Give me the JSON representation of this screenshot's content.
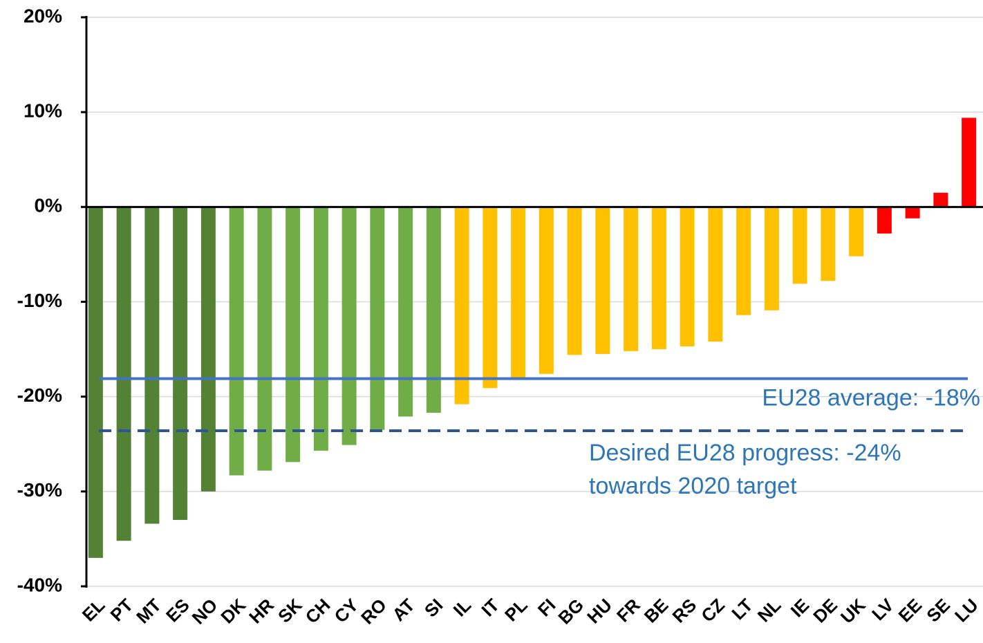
{
  "chart_data": {
    "type": "bar",
    "categories": [
      "EL",
      "PT",
      "MT",
      "ES",
      "NO",
      "DK",
      "HR",
      "SK",
      "CH",
      "CY",
      "RO",
      "AT",
      "SI",
      "IL",
      "IT",
      "PL",
      "FI",
      "BG",
      "HU",
      "FR",
      "BE",
      "RS",
      "CZ",
      "LT",
      "NL",
      "IE",
      "DE",
      "UK",
      "LV",
      "EE",
      "SE",
      "LU"
    ],
    "values": [
      -37.0,
      -35.2,
      -33.4,
      -33.0,
      -30.0,
      -28.3,
      -27.8,
      -26.9,
      -25.7,
      -25.1,
      -23.5,
      -22.1,
      -21.7,
      -20.8,
      -19.1,
      -18.1,
      -17.6,
      -15.6,
      -15.5,
      -15.2,
      -15.0,
      -14.7,
      -14.2,
      -11.4,
      -10.9,
      -8.1,
      -7.8,
      -5.2,
      -2.8,
      -1.2,
      1.5,
      9.4
    ],
    "colors": [
      "#548235",
      "#548235",
      "#548235",
      "#548235",
      "#548235",
      "#70ad47",
      "#70ad47",
      "#70ad47",
      "#70ad47",
      "#70ad47",
      "#70ad47",
      "#70ad47",
      "#70ad47",
      "#ffc000",
      "#ffc000",
      "#ffc000",
      "#ffc000",
      "#ffc000",
      "#ffc000",
      "#ffc000",
      "#ffc000",
      "#ffc000",
      "#ffc000",
      "#ffc000",
      "#ffc000",
      "#ffc000",
      "#ffc000",
      "#ffc000",
      "#ff0000",
      "#ff0000",
      "#ff0000",
      "#ff0000"
    ],
    "ylim": [
      -40,
      20
    ],
    "yticks": [
      {
        "value": -40,
        "label": "-40%"
      },
      {
        "value": -30,
        "label": "-30%"
      },
      {
        "value": -20,
        "label": "-20%"
      },
      {
        "value": -10,
        "label": "-10%"
      },
      {
        "value": 0,
        "label": "0%"
      },
      {
        "value": 10,
        "label": "10%"
      },
      {
        "value": 20,
        "label": "20%"
      }
    ],
    "grid": true,
    "reference_lines": [
      {
        "value": -18.1,
        "color": "#4472c4",
        "style": "solid",
        "label": [
          "EU28 average: -18%"
        ]
      },
      {
        "value": -23.6,
        "color": "#2f5597",
        "style": "dashed",
        "label": [
          "Desired EU28 progress: -24%",
          "towards 2020 target"
        ]
      }
    ]
  }
}
